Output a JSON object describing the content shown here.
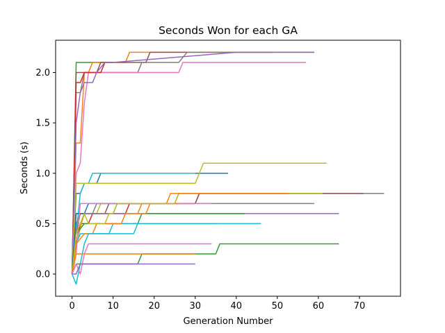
{
  "chart_data": {
    "type": "line",
    "title": "Seconds Won for each GA",
    "xlabel": "Generation Number",
    "ylabel": "Seconds (s)",
    "xlim": [
      -4,
      80
    ],
    "ylim": [
      -0.22,
      2.32
    ],
    "xticks": [
      0,
      10,
      20,
      30,
      40,
      50,
      60,
      70
    ],
    "yticks": [
      0.0,
      0.5,
      1.0,
      1.5,
      2.0
    ],
    "ytick_labels": [
      "0.0",
      "0.5",
      "1.0",
      "1.5",
      "2.0"
    ],
    "grid": false,
    "series": [
      {
        "color": "#2ca02c",
        "points": [
          [
            0,
            0.0
          ],
          [
            1,
            2.1
          ],
          [
            2,
            2.1
          ],
          [
            3,
            2.1
          ],
          [
            4,
            2.1
          ],
          [
            5,
            2.1
          ],
          [
            6,
            2.1
          ],
          [
            7,
            2.1
          ],
          [
            8,
            2.1
          ]
        ]
      },
      {
        "color": "#ff7f0e",
        "points": [
          [
            0,
            0.0
          ],
          [
            1,
            1.3
          ],
          [
            2,
            1.3
          ],
          [
            3,
            2.0
          ],
          [
            4,
            2.0
          ],
          [
            5,
            2.1
          ],
          [
            13,
            2.1
          ],
          [
            14,
            2.2
          ],
          [
            18,
            2.2
          ],
          [
            19,
            2.2
          ],
          [
            30,
            2.2
          ],
          [
            35,
            2.2
          ],
          [
            49,
            2.2
          ]
        ]
      },
      {
        "color": "#8c564b",
        "points": [
          [
            0,
            0.0
          ],
          [
            1,
            2.0
          ],
          [
            6,
            2.0
          ],
          [
            7,
            2.1
          ],
          [
            12,
            2.1
          ],
          [
            14,
            2.1
          ],
          [
            18,
            2.1
          ],
          [
            19,
            2.2
          ],
          [
            30,
            2.2
          ],
          [
            49,
            2.2
          ]
        ]
      },
      {
        "color": "#7f7f7f",
        "points": [
          [
            0,
            0.0
          ],
          [
            1,
            1.8
          ],
          [
            2,
            1.8
          ],
          [
            3,
            2.0
          ],
          [
            16,
            2.0
          ],
          [
            17,
            2.1
          ],
          [
            26,
            2.1
          ],
          [
            28,
            2.2
          ],
          [
            40,
            2.2
          ],
          [
            59,
            2.2
          ]
        ]
      },
      {
        "color": "#e377c2",
        "points": [
          [
            0,
            0.0
          ],
          [
            1,
            1.0
          ],
          [
            2,
            1.1
          ],
          [
            3,
            1.7
          ],
          [
            4,
            2.0
          ],
          [
            9,
            2.0
          ],
          [
            20,
            2.0
          ],
          [
            26,
            2.0
          ],
          [
            27,
            2.1
          ],
          [
            40,
            2.1
          ],
          [
            57,
            2.1
          ]
        ]
      },
      {
        "color": "#d62728",
        "points": [
          [
            0,
            0.0
          ],
          [
            1,
            1.9
          ],
          [
            2,
            1.9
          ],
          [
            3,
            2.0
          ],
          [
            7,
            2.0
          ],
          [
            8,
            2.1
          ],
          [
            10,
            2.1
          ]
        ]
      },
      {
        "color": "#9467bd",
        "points": [
          [
            0,
            0.0
          ],
          [
            1,
            1.5
          ],
          [
            2,
            1.8
          ],
          [
            3,
            1.9
          ],
          [
            5,
            1.9
          ],
          [
            6,
            2.0
          ],
          [
            8,
            2.1
          ],
          [
            10,
            2.1
          ],
          [
            40,
            2.2
          ],
          [
            59,
            2.2
          ]
        ]
      },
      {
        "color": "#1f77b4",
        "points": [
          [
            0,
            0.0
          ],
          [
            1,
            0.8
          ],
          [
            2,
            0.8
          ],
          [
            3,
            0.9
          ],
          [
            6,
            0.9
          ],
          [
            7,
            1.0
          ],
          [
            10,
            1.0
          ],
          [
            20,
            1.0
          ],
          [
            35,
            1.0
          ],
          [
            38,
            1.0
          ]
        ]
      },
      {
        "color": "#17becf",
        "points": [
          [
            0,
            0.0
          ],
          [
            1,
            0.4
          ],
          [
            2,
            0.8
          ],
          [
            3,
            0.9
          ],
          [
            4,
            0.9
          ],
          [
            5,
            1.0
          ],
          [
            10,
            1.0
          ],
          [
            20,
            1.0
          ],
          [
            30,
            1.0
          ]
        ]
      },
      {
        "color": "#bcbd22",
        "points": [
          [
            0,
            0.0
          ],
          [
            1,
            0.9
          ],
          [
            30,
            0.9
          ],
          [
            31,
            1.0
          ],
          [
            32,
            1.1
          ],
          [
            50,
            1.1
          ],
          [
            62,
            1.1
          ]
        ]
      },
      {
        "color": "#7f7f7f",
        "points": [
          [
            0,
            0.0
          ],
          [
            1,
            0.5
          ],
          [
            2,
            0.6
          ],
          [
            5,
            0.6
          ],
          [
            6,
            0.7
          ],
          [
            20,
            0.7
          ],
          [
            25,
            0.7
          ],
          [
            26,
            0.8
          ],
          [
            40,
            0.8
          ],
          [
            50,
            0.8
          ],
          [
            61,
            0.8
          ],
          [
            70,
            0.8
          ],
          [
            76,
            0.8
          ]
        ]
      },
      {
        "color": "#d62728",
        "points": [
          [
            0,
            0.0
          ],
          [
            1,
            0.3
          ],
          [
            2,
            0.5
          ],
          [
            4,
            0.5
          ],
          [
            5,
            0.6
          ],
          [
            13,
            0.6
          ],
          [
            14,
            0.7
          ],
          [
            25,
            0.7
          ],
          [
            26,
            0.7
          ],
          [
            30,
            0.7
          ],
          [
            31,
            0.8
          ],
          [
            40,
            0.8
          ],
          [
            52,
            0.8
          ]
        ]
      },
      {
        "color": "#8c564b",
        "points": [
          [
            0,
            0.0
          ],
          [
            1,
            0.6
          ],
          [
            8,
            0.6
          ],
          [
            9,
            0.7
          ],
          [
            30,
            0.7
          ],
          [
            31,
            0.8
          ],
          [
            50,
            0.8
          ],
          [
            60,
            0.8
          ],
          [
            71,
            0.8
          ]
        ]
      },
      {
        "color": "#bcbd22",
        "points": [
          [
            0,
            0.0
          ],
          [
            1,
            0.3
          ],
          [
            3,
            0.6
          ],
          [
            6,
            0.6
          ],
          [
            7,
            0.7
          ],
          [
            20,
            0.7
          ],
          [
            25,
            0.7
          ],
          [
            26,
            0.8
          ],
          [
            45,
            0.8
          ],
          [
            50,
            0.8
          ],
          [
            61,
            0.8
          ]
        ]
      },
      {
        "color": "#ff7f0e",
        "points": [
          [
            0,
            0.0
          ],
          [
            1,
            0.4
          ],
          [
            2,
            0.6
          ],
          [
            16,
            0.6
          ],
          [
            17,
            0.7
          ],
          [
            23,
            0.7
          ],
          [
            24,
            0.8
          ],
          [
            44,
            0.8
          ],
          [
            45,
            0.8
          ],
          [
            53,
            0.8
          ]
        ]
      },
      {
        "color": "#7f7f7f",
        "points": [
          [
            0,
            0.0
          ],
          [
            1,
            0.4
          ],
          [
            2,
            0.6
          ],
          [
            8,
            0.6
          ],
          [
            10,
            0.6
          ],
          [
            11,
            0.7
          ],
          [
            31,
            0.7
          ],
          [
            32,
            0.7
          ],
          [
            46,
            0.7
          ],
          [
            59,
            0.7
          ]
        ]
      },
      {
        "color": "#9467bd",
        "points": [
          [
            0,
            0.0
          ],
          [
            1,
            0.4
          ],
          [
            2,
            0.5
          ],
          [
            3,
            0.6
          ],
          [
            25,
            0.6
          ],
          [
            26,
            0.6
          ],
          [
            35,
            0.6
          ],
          [
            36,
            0.6
          ],
          [
            65,
            0.6
          ]
        ]
      },
      {
        "color": "#2ca02c",
        "points": [
          [
            0,
            0.0
          ],
          [
            1,
            0.4
          ],
          [
            3,
            0.5
          ],
          [
            16,
            0.5
          ],
          [
            17,
            0.6
          ],
          [
            40,
            0.6
          ],
          [
            42,
            0.6
          ]
        ]
      },
      {
        "color": "#17becf",
        "points": [
          [
            0,
            0.0
          ],
          [
            1,
            0.3
          ],
          [
            2,
            0.4
          ],
          [
            9,
            0.4
          ],
          [
            10,
            0.5
          ],
          [
            15,
            0.5
          ],
          [
            16,
            0.5
          ],
          [
            30,
            0.5
          ],
          [
            46,
            0.5
          ]
        ]
      },
      {
        "color": "#1f77b4",
        "points": [
          [
            0,
            0.0
          ],
          [
            1,
            0.6
          ],
          [
            3,
            0.6
          ],
          [
            4,
            0.7
          ],
          [
            12,
            0.7
          ],
          [
            13,
            0.7
          ],
          [
            22,
            0.7
          ]
        ]
      },
      {
        "color": "#e377c2",
        "points": [
          [
            0,
            0.0
          ],
          [
            1,
            0.2
          ],
          [
            2,
            0.7
          ],
          [
            4,
            0.7
          ],
          [
            5,
            0.7
          ],
          [
            20,
            0.7
          ],
          [
            30,
            0.7
          ],
          [
            34,
            0.7
          ]
        ]
      },
      {
        "color": "#ff7f0e",
        "points": [
          [
            0,
            0.0
          ],
          [
            1,
            0.3
          ],
          [
            3,
            0.4
          ],
          [
            5,
            0.4
          ],
          [
            6,
            0.5
          ],
          [
            12,
            0.5
          ],
          [
            13,
            0.6
          ],
          [
            18,
            0.6
          ],
          [
            19,
            0.7
          ],
          [
            26,
            0.7
          ]
        ]
      },
      {
        "color": "#bcbd22",
        "points": [
          [
            0,
            0.0
          ],
          [
            1,
            0.4
          ],
          [
            2,
            0.5
          ],
          [
            3,
            0.6
          ],
          [
            4,
            0.5
          ],
          [
            8,
            0.5
          ],
          [
            9,
            0.6
          ],
          [
            10,
            0.6
          ],
          [
            11,
            0.7
          ],
          [
            25,
            0.7
          ]
        ]
      },
      {
        "color": "#17becf",
        "points": [
          [
            0,
            0.0
          ],
          [
            1,
            -0.1
          ],
          [
            2,
            0.1
          ],
          [
            3,
            0.3
          ],
          [
            4,
            0.4
          ],
          [
            15,
            0.4
          ],
          [
            16,
            0.5
          ],
          [
            35,
            0.5
          ]
        ]
      },
      {
        "color": "#2ca02c",
        "points": [
          [
            0,
            0.0
          ],
          [
            1,
            0.1
          ],
          [
            16,
            0.1
          ],
          [
            17,
            0.2
          ],
          [
            35,
            0.2
          ],
          [
            36,
            0.3
          ],
          [
            65,
            0.3
          ]
        ]
      },
      {
        "color": "#ff7f0e",
        "points": [
          [
            0,
            0.0
          ],
          [
            1,
            0.2
          ],
          [
            10,
            0.2
          ],
          [
            16,
            0.2
          ],
          [
            17,
            0.2
          ],
          [
            30,
            0.2
          ]
        ]
      },
      {
        "color": "#e377c2",
        "points": [
          [
            0,
            0.0
          ],
          [
            1,
            0.1
          ],
          [
            2,
            0.0
          ],
          [
            3,
            0.2
          ],
          [
            4,
            0.3
          ],
          [
            20,
            0.3
          ],
          [
            34,
            0.3
          ]
        ]
      },
      {
        "color": "#9467bd",
        "points": [
          [
            0,
            0.0
          ],
          [
            1,
            0.0
          ],
          [
            2,
            0.1
          ],
          [
            3,
            0.1
          ],
          [
            10,
            0.1
          ],
          [
            20,
            0.1
          ],
          [
            30,
            0.1
          ]
        ]
      }
    ]
  }
}
